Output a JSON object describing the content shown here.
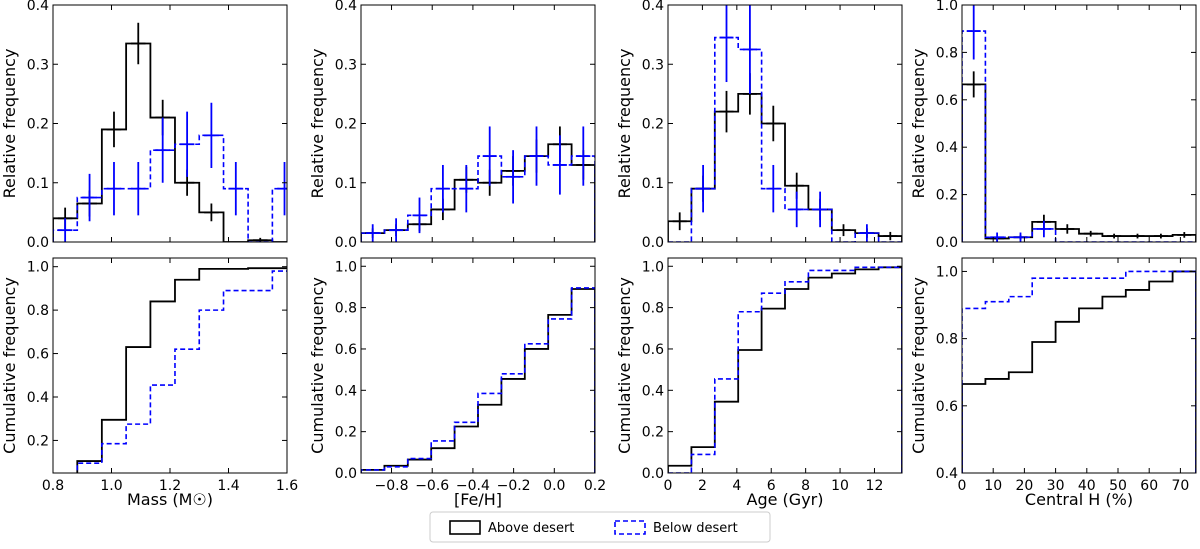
{
  "colors": {
    "above": "#000000",
    "below": "#0000ff"
  },
  "legend": {
    "above_label": "Above desert",
    "below_label": "Below desert"
  },
  "chart_data": [
    {
      "type": "bar",
      "panel": "mass",
      "xlabel": "Mass (M☉)",
      "xlim": [
        0.8,
        1.6
      ],
      "xticks": [
        0.8,
        1.0,
        1.2,
        1.4,
        1.6
      ],
      "xtick_labels": [
        "0.8",
        "1.0",
        "1.2",
        "1.4",
        "1.6"
      ],
      "bin_edges": [
        0.8,
        0.883,
        0.967,
        1.05,
        1.133,
        1.217,
        1.3,
        1.383,
        1.467,
        1.55,
        1.633
      ],
      "top": {
        "ylabel": "Relative frequency",
        "ylim": [
          0,
          0.4
        ],
        "yticks": [
          0.0,
          0.1,
          0.2,
          0.3,
          0.4
        ],
        "ytick_labels": [
          "0.0",
          "0.1",
          "0.2",
          "0.3",
          "0.4"
        ],
        "series": [
          {
            "name": "Above desert",
            "values": [
              0.04,
              0.065,
              0.19,
              0.335,
              0.21,
              0.1,
              0.05,
              0.0,
              0.003,
              0.0
            ],
            "errors": [
              0.018,
              0.022,
              0.03,
              0.035,
              0.03,
              0.022,
              0.015,
              0.0,
              0.004,
              0.0
            ]
          },
          {
            "name": "Below desert",
            "values": [
              0.02,
              0.075,
              0.09,
              0.09,
              0.155,
              0.165,
              0.18,
              0.09,
              0.0,
              0.09
            ],
            "errors": [
              0.02,
              0.04,
              0.045,
              0.045,
              0.055,
              0.055,
              0.055,
              0.045,
              0.0,
              0.045
            ]
          }
        ]
      },
      "bottom": {
        "ylabel": "Cumulative frequency",
        "ylim": [
          0.05,
          1.04
        ],
        "yticks": [
          0.2,
          0.4,
          0.6,
          0.8,
          1.0
        ],
        "ytick_labels": [
          "0.2",
          "0.4",
          "0.6",
          "0.8",
          "1.0"
        ],
        "series": [
          {
            "name": "Above desert",
            "values": [
              0.04,
              0.105,
              0.295,
              0.63,
              0.84,
              0.94,
              0.99,
              0.99,
              0.993,
              0.993
            ]
          },
          {
            "name": "Below desert",
            "values": [
              0.02,
              0.095,
              0.185,
              0.275,
              0.455,
              0.62,
              0.8,
              0.89,
              0.89,
              0.98
            ]
          }
        ]
      }
    },
    {
      "type": "bar",
      "panel": "feh",
      "xlabel": "[Fe/H]",
      "xlim": [
        -0.95,
        0.2
      ],
      "xticks": [
        -0.8,
        -0.6,
        -0.4,
        -0.2,
        0.0,
        0.2
      ],
      "xtick_labels": [
        "−0.8",
        "−0.6",
        "−0.4",
        "−0.2",
        "0.0",
        "0.2"
      ],
      "bin_edges": [
        -0.95,
        -0.835,
        -0.72,
        -0.605,
        -0.49,
        -0.375,
        -0.26,
        -0.145,
        -0.03,
        0.085,
        0.2
      ],
      "top": {
        "ylabel": "Relative frequency",
        "ylim": [
          0,
          0.4
        ],
        "yticks": [
          0.0,
          0.1,
          0.2,
          0.3,
          0.4
        ],
        "ytick_labels": [
          "0.0",
          "0.1",
          "0.2",
          "0.3",
          "0.4"
        ],
        "series": [
          {
            "name": "Above desert",
            "values": [
              0.015,
              0.02,
              0.03,
              0.055,
              0.105,
              0.1,
              0.12,
              0.145,
              0.165,
              0.13
            ],
            "errors": [
              0.008,
              0.01,
              0.012,
              0.018,
              0.022,
              0.022,
              0.025,
              0.028,
              0.03,
              0.025
            ]
          },
          {
            "name": "Below desert",
            "values": [
              0.015,
              0.02,
              0.045,
              0.09,
              0.09,
              0.145,
              0.11,
              0.145,
              0.13,
              0.145
            ],
            "errors": [
              0.015,
              0.02,
              0.03,
              0.04,
              0.04,
              0.05,
              0.045,
              0.05,
              0.05,
              0.05
            ]
          }
        ]
      },
      "bottom": {
        "ylabel": "Cumulative frequency",
        "ylim": [
          0.0,
          1.04
        ],
        "yticks": [
          0.0,
          0.2,
          0.4,
          0.6,
          0.8,
          1.0
        ],
        "ytick_labels": [
          "0.0",
          "0.2",
          "0.4",
          "0.6",
          "0.8",
          "1.0"
        ],
        "series": [
          {
            "name": "Above desert",
            "values": [
              0.015,
              0.035,
              0.065,
              0.12,
              0.225,
              0.33,
              0.455,
              0.6,
              0.765,
              0.89
            ]
          },
          {
            "name": "Below desert",
            "values": [
              0.015,
              0.03,
              0.07,
              0.155,
              0.245,
              0.385,
              0.48,
              0.625,
              0.745,
              0.895
            ]
          }
        ]
      }
    },
    {
      "type": "bar",
      "panel": "age",
      "xlabel": "Age (Gyr)",
      "xlim": [
        0,
        13.6
      ],
      "xticks": [
        0,
        2,
        4,
        6,
        8,
        10,
        12
      ],
      "xtick_labels": [
        "0",
        "2",
        "4",
        "6",
        "8",
        "10",
        "12"
      ],
      "bin_edges": [
        0,
        1.36,
        2.72,
        4.08,
        5.44,
        6.8,
        8.16,
        9.52,
        10.88,
        12.24,
        13.6
      ],
      "top": {
        "ylabel": "Relative frequency",
        "ylim": [
          0,
          0.4
        ],
        "yticks": [
          0.0,
          0.1,
          0.2,
          0.3,
          0.4
        ],
        "ytick_labels": [
          "0.0",
          "0.1",
          "0.2",
          "0.3",
          "0.4"
        ],
        "series": [
          {
            "name": "Above desert",
            "values": [
              0.035,
              0.09,
              0.22,
              0.25,
              0.2,
              0.095,
              0.055,
              0.02,
              0.015,
              0.01
            ],
            "errors": [
              0.015,
              0.022,
              0.035,
              0.035,
              0.03,
              0.022,
              0.018,
              0.01,
              0.008,
              0.007
            ]
          },
          {
            "name": "Below desert",
            "values": [
              0.0,
              0.09,
              0.345,
              0.325,
              0.09,
              0.055,
              0.055,
              0.0,
              0.015,
              0.0
            ],
            "errors": [
              0.0,
              0.04,
              0.075,
              0.075,
              0.04,
              0.03,
              0.03,
              0.0,
              0.015,
              0.0
            ]
          }
        ]
      },
      "bottom": {
        "ylabel": "Cumulative frequency",
        "ylim": [
          0.0,
          1.04
        ],
        "yticks": [
          0.0,
          0.2,
          0.4,
          0.6,
          0.8,
          1.0
        ],
        "ytick_labels": [
          "0.0",
          "0.2",
          "0.4",
          "0.6",
          "0.8",
          "1.0"
        ],
        "series": [
          {
            "name": "Above desert",
            "values": [
              0.035,
              0.125,
              0.345,
              0.595,
              0.795,
              0.89,
              0.945,
              0.965,
              0.985,
              0.995
            ]
          },
          {
            "name": "Below desert",
            "values": [
              0.0,
              0.09,
              0.455,
              0.78,
              0.87,
              0.925,
              0.98,
              0.98,
              0.995,
              0.995
            ]
          }
        ]
      }
    },
    {
      "type": "bar",
      "panel": "central_h",
      "xlabel": "Central H (%)",
      "xlim": [
        0,
        75
      ],
      "xticks": [
        0,
        10,
        20,
        30,
        40,
        50,
        60,
        70
      ],
      "xtick_labels": [
        "0",
        "10",
        "20",
        "30",
        "40",
        "50",
        "60",
        "70"
      ],
      "bin_edges": [
        0,
        7.5,
        15,
        22.5,
        30,
        37.5,
        45,
        52.5,
        60,
        67.5,
        75
      ],
      "top": {
        "ylabel": "Relative frequency",
        "ylim": [
          0,
          1.0
        ],
        "yticks": [
          0.0,
          0.2,
          0.4,
          0.6,
          0.8,
          1.0
        ],
        "ytick_labels": [
          "0.0",
          "0.2",
          "0.4",
          "0.6",
          "0.8",
          "1.0"
        ],
        "series": [
          {
            "name": "Above desert",
            "values": [
              0.665,
              0.015,
              0.02,
              0.085,
              0.055,
              0.035,
              0.025,
              0.025,
              0.025,
              0.03
            ],
            "errors": [
              0.055,
              0.008,
              0.01,
              0.03,
              0.02,
              0.012,
              0.01,
              0.01,
              0.01,
              0.012
            ]
          },
          {
            "name": "Below desert",
            "values": [
              0.89,
              0.02,
              0.02,
              0.055,
              0.0,
              0.0,
              0.0,
              0.0,
              0.0,
              0.0
            ],
            "errors": [
              0.12,
              0.02,
              0.02,
              0.035,
              0.0,
              0.0,
              0.0,
              0.0,
              0.0,
              0.0
            ]
          }
        ]
      },
      "bottom": {
        "ylabel": "Cumulative frequency",
        "ylim": [
          0.4,
          1.04
        ],
        "yticks": [
          0.4,
          0.6,
          0.8,
          1.0
        ],
        "ytick_labels": [
          "0.4",
          "0.6",
          "0.8",
          "1.0"
        ],
        "series": [
          {
            "name": "Above desert",
            "values": [
              0.665,
              0.68,
              0.7,
              0.79,
              0.85,
              0.89,
              0.925,
              0.945,
              0.97,
              1.0
            ]
          },
          {
            "name": "Below desert",
            "values": [
              0.89,
              0.91,
              0.925,
              0.98,
              0.98,
              0.98,
              0.98,
              1.0,
              1.0,
              1.0
            ]
          }
        ]
      }
    }
  ]
}
